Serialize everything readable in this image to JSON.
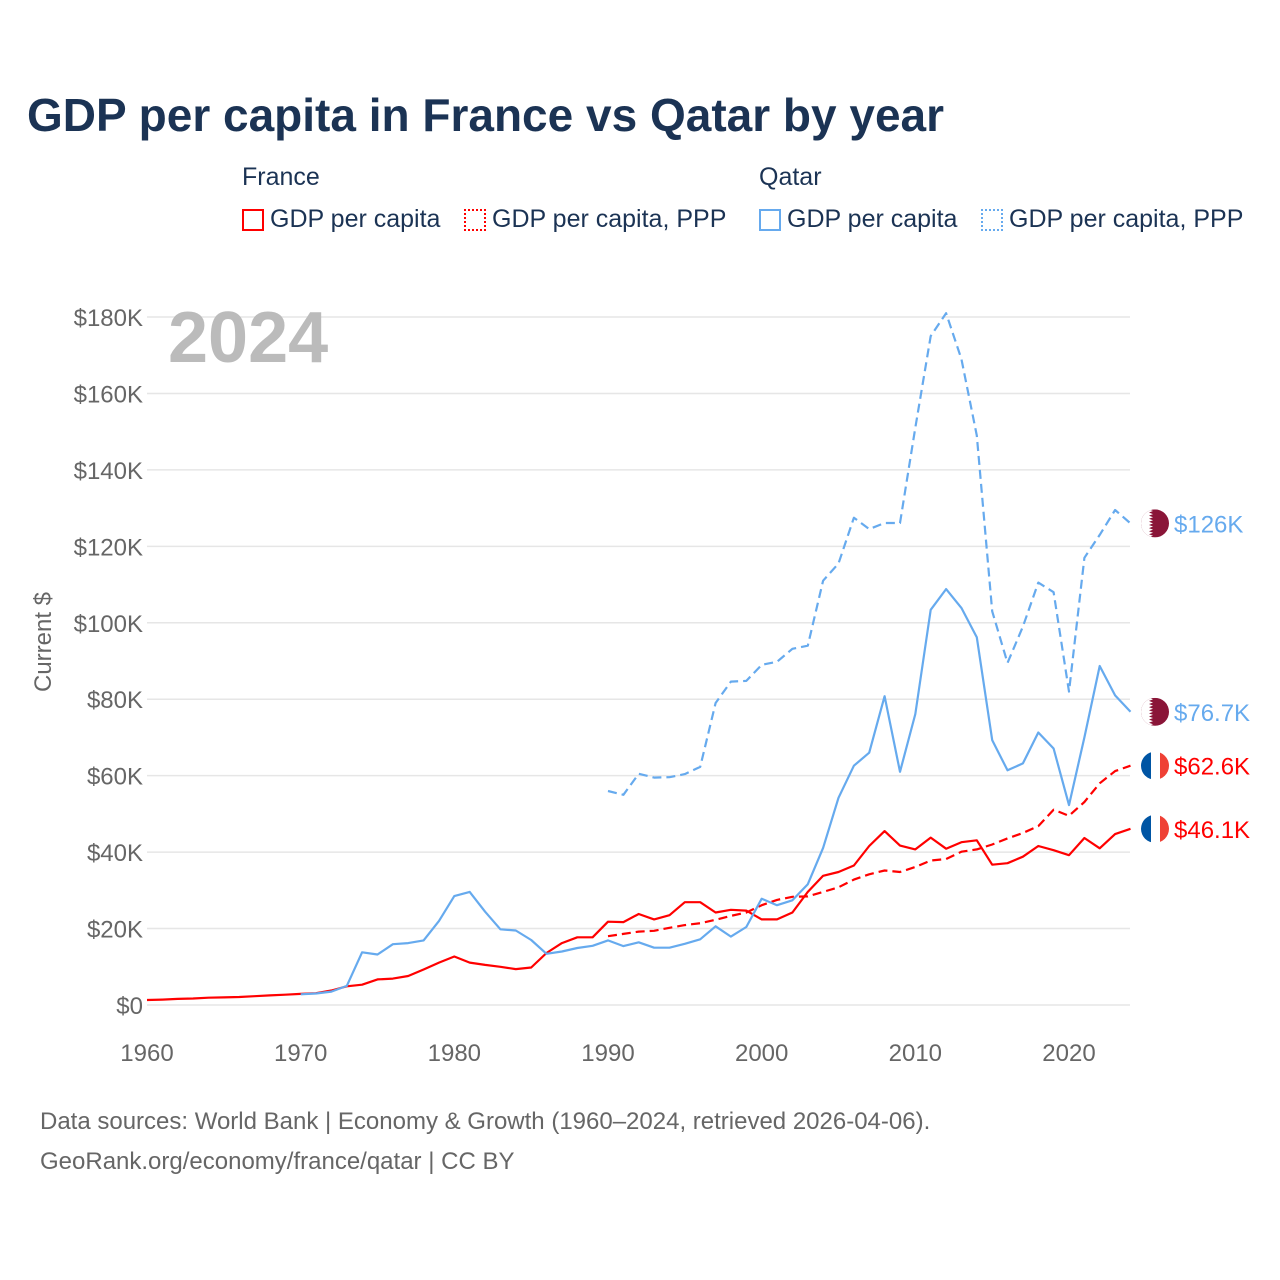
{
  "title": "GDP per capita in France vs Qatar by year",
  "legend": {
    "groups": [
      {
        "name": "France",
        "items": [
          "GDP per capita",
          "GDP per capita, PPP"
        ]
      },
      {
        "name": "Qatar",
        "items": [
          "GDP per capita",
          "GDP per capita, PPP"
        ]
      }
    ]
  },
  "year_label": "2024",
  "footer": {
    "line1": "Data sources: World Bank | Economy & Growth (1960–2024, retrieved 2026-04-06).",
    "line2": "GeoRank.org/economy/france/qatar | CC BY"
  },
  "chart_data": {
    "type": "line",
    "title": "GDP per capita in France vs Qatar by year",
    "ylabel": "Current $",
    "xlabel": "",
    "xlim": [
      1960,
      2024
    ],
    "ylim": [
      0,
      180
    ],
    "x_ticks": [
      1960,
      1970,
      1980,
      1990,
      2000,
      2010,
      2020
    ],
    "x_tick_labels": [
      "1960",
      "1970",
      "1980",
      "1990",
      "2000",
      "2010",
      "2020"
    ],
    "y_ticks": [
      0,
      20,
      40,
      60,
      80,
      100,
      120,
      140,
      160,
      180
    ],
    "y_tick_labels": [
      "$0",
      "$20K",
      "$40K",
      "$60K",
      "$80K",
      "$100K",
      "$120K",
      "$140K",
      "$160K",
      "$180K"
    ],
    "grid": true,
    "legend_position": "top",
    "series": [
      {
        "name": "France GDP per capita",
        "color": "#ff0000",
        "dash": false,
        "start": 1960,
        "end_label": "$46.1K",
        "flag": "france",
        "values": [
          1.3,
          1.4,
          1.6,
          1.7,
          1.9,
          2.0,
          2.1,
          2.3,
          2.5,
          2.7,
          2.9,
          3.1,
          3.8,
          4.9,
          5.3,
          6.7,
          6.9,
          7.6,
          9.3,
          11.1,
          12.7,
          11.1,
          10.5,
          10.0,
          9.4,
          9.8,
          13.6,
          16.2,
          17.7,
          17.7,
          21.8,
          21.7,
          23.8,
          22.4,
          23.5,
          26.9,
          26.9,
          24.2,
          24.9,
          24.7,
          22.4,
          22.4,
          24.2,
          29.6,
          33.8,
          34.8,
          36.5,
          41.6,
          45.5,
          41.7,
          40.7,
          43.8,
          40.9,
          42.6,
          43.1,
          36.7,
          37.1,
          38.8,
          41.6,
          40.5,
          39.2,
          43.7,
          41.0,
          44.7,
          46.1
        ]
      },
      {
        "name": "France GDP per capita, PPP",
        "color": "#ff0000",
        "dash": true,
        "start": 1990,
        "end_label": "$62.6K",
        "flag": "france",
        "values": [
          18.0,
          18.6,
          19.2,
          19.4,
          20.2,
          20.9,
          21.4,
          22.3,
          23.3,
          24.2,
          26.1,
          27.5,
          28.3,
          28.4,
          29.6,
          30.8,
          32.8,
          34.2,
          35.2,
          34.8,
          36.1,
          37.8,
          38.2,
          40.1,
          40.7,
          42.0,
          43.6,
          45.0,
          46.8,
          51.1,
          49.5,
          53.1,
          58.0,
          61.2,
          62.6
        ]
      },
      {
        "name": "Qatar GDP per capita",
        "color": "#66aaee",
        "dash": false,
        "start": 1970,
        "end_label": "$76.7K",
        "flag": "qatar",
        "values": [
          2.8,
          3.0,
          3.5,
          5.0,
          13.8,
          13.2,
          15.9,
          16.2,
          16.9,
          22.0,
          28.5,
          29.6,
          24.4,
          19.8,
          19.5,
          17.0,
          13.4,
          14.0,
          14.9,
          15.5,
          16.9,
          15.4,
          16.4,
          15.0,
          15.0,
          16.0,
          17.2,
          20.6,
          17.9,
          20.4,
          27.8,
          26.1,
          27.4,
          31.6,
          41.1,
          54.2,
          62.6,
          66.0,
          80.8,
          61.0,
          76.1,
          103.4,
          108.8,
          103.9,
          96.2,
          69.3,
          61.4,
          63.2,
          71.3,
          67.1,
          52.3,
          70.0,
          88.7,
          81.0,
          76.7
        ]
      },
      {
        "name": "Qatar GDP per capita, PPP",
        "color": "#66aaee",
        "dash": true,
        "start": 1990,
        "end_label": "$126K",
        "flag": "qatar",
        "values": [
          56.0,
          55.0,
          60.5,
          59.5,
          59.6,
          60.4,
          62.3,
          79.0,
          84.6,
          84.8,
          89.0,
          89.8,
          93.2,
          94.0,
          111.0,
          115.5,
          127.5,
          124.5,
          126.1,
          126.1,
          151.0,
          175.0,
          181.0,
          169.0,
          149.0,
          103.0,
          89.5,
          99.0,
          110.5,
          108.0,
          82.0,
          117.0,
          123.0,
          129.5,
          126.0
        ]
      }
    ]
  }
}
